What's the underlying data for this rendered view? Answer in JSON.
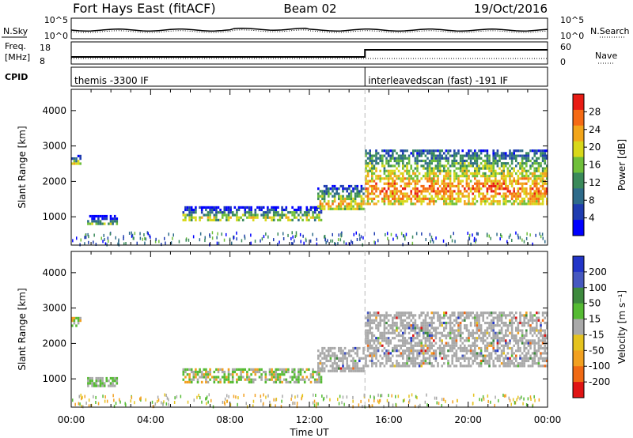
{
  "header": {
    "station": "Fort Hays East (fitACF)",
    "beam": "Beam 02",
    "date": "19/Oct/2016"
  },
  "top_strip": {
    "left_label": "N.Sky",
    "left_ticks": [
      "10^5",
      "10^0"
    ],
    "right_label": "N.Search",
    "right_ticks": [
      "10^5",
      "10^0"
    ]
  },
  "freq_strip": {
    "left_label_line1": "Freq.",
    "left_label_line2": "[MHz]",
    "left_ticks": [
      "18",
      "8"
    ],
    "right_label": "Nave",
    "right_ticks": [
      "60",
      "0"
    ]
  },
  "cpid": {
    "label": "CPID",
    "segments": [
      {
        "text": "themis -3300 IF",
        "start_hour": 0,
        "end_hour": 14.8
      },
      {
        "text": "interleavedscan (fast) -191 IF",
        "start_hour": 14.8,
        "end_hour": 24
      }
    ]
  },
  "chart_data": [
    {
      "type": "heatmap",
      "name": "power-panel",
      "ylabel": "Slant Range [km]",
      "ylim": [
        200,
        4600
      ],
      "yticks": [
        "1000",
        "2000",
        "3000",
        "4000"
      ],
      "xlim_hours": [
        0,
        24
      ],
      "colorbar": {
        "label": "Power [dB]",
        "ticks": [
          "4",
          "8",
          "12",
          "16",
          "20",
          "24",
          "28"
        ],
        "range": [
          0,
          32
        ]
      },
      "echo_regions": [
        {
          "hour_start": 0.0,
          "hour_end": 0.5,
          "range_start": 2450,
          "range_end": 2750,
          "level": "low-mid"
        },
        {
          "hour_start": 0.8,
          "hour_end": 2.4,
          "range_start": 750,
          "range_end": 1050,
          "level": "low"
        },
        {
          "hour_start": 5.6,
          "hour_end": 12.6,
          "range_start": 850,
          "range_end": 1300,
          "level": "low-mid"
        },
        {
          "hour_start": 12.4,
          "hour_end": 14.8,
          "range_start": 1200,
          "range_end": 1900,
          "level": "mid-high"
        },
        {
          "hour_start": 14.8,
          "hour_end": 24.0,
          "range_start": 1300,
          "range_end": 2900,
          "level": "high"
        }
      ]
    },
    {
      "type": "heatmap",
      "name": "velocity-panel",
      "ylabel": "Slant Range [km]",
      "ylim": [
        200,
        4600
      ],
      "yticks": [
        "1000",
        "2000",
        "3000",
        "4000"
      ],
      "xlim_hours": [
        0,
        24
      ],
      "colorbar": {
        "label": "Velocity [m s⁻¹]",
        "ticks": [
          "200",
          "100",
          "50",
          "15",
          "-15",
          "-50",
          "-100",
          "-200"
        ]
      },
      "xticks": [
        "00:00",
        "04:00",
        "08:00",
        "12:00",
        "16:00",
        "20:00",
        "00:00"
      ],
      "xlabel": "Time UT"
    }
  ],
  "colors": {
    "power": [
      "#0000ff",
      "#1f3cb0",
      "#2e6b8a",
      "#3a8a5a",
      "#6fbf3a",
      "#d8d81a",
      "#f2a51a",
      "#f56a14",
      "#e81c14"
    ],
    "velocity": [
      "#2235c8",
      "#4658c0",
      "#3e8a3e",
      "#55bb33",
      "#a9a9a9",
      "#e5c31f",
      "#f2a020",
      "#f06a14",
      "#e01414"
    ]
  }
}
